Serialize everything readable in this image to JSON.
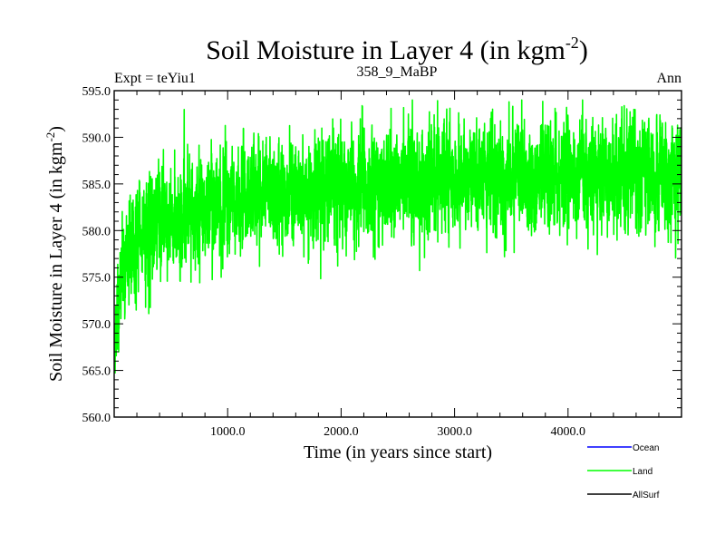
{
  "chart_data": {
    "type": "line",
    "title_main": "Soil Moisture in Layer 4 (in kgm",
    "title_sup": "-2",
    "title_close": ")",
    "subtitle_left": "Expt = teYiu1",
    "subtitle_center": "358_9_MaBP",
    "subtitle_right": "Ann",
    "xlabel": "Time (in years since start)",
    "ylabel_main": "Soil Moisture in Layer 4 (in kgm",
    "ylabel_sup": "-2",
    "ylabel_close": ")",
    "xlim": [
      0,
      5000
    ],
    "ylim": [
      560,
      595
    ],
    "xticks": [
      1000,
      2000,
      3000,
      4000
    ],
    "xtick_labels": [
      "1000.0",
      "2000.0",
      "3000.0",
      "4000.0"
    ],
    "yticks": [
      560,
      565,
      570,
      575,
      580,
      585,
      590,
      595
    ],
    "ytick_labels": [
      "560.0",
      "565.0",
      "570.0",
      "575.0",
      "580.0",
      "585.0",
      "590.0",
      "595.0"
    ],
    "legend": [
      {
        "name": "Ocean",
        "color": "#0000ff"
      },
      {
        "name": "Land",
        "color": "#00ff00"
      },
      {
        "name": "AllSurf",
        "color": "#000000"
      }
    ],
    "series": [
      {
        "name": "Land",
        "color": "#00ff00",
        "n_points": 5000,
        "trend_x": [
          0,
          50,
          200,
          500,
          1000,
          1500,
          2000,
          2500,
          3000,
          3500,
          4000,
          4500,
          5000
        ],
        "trend_y": [
          567,
          575,
          579,
          581.5,
          583,
          584,
          584.8,
          585.3,
          585.6,
          585.9,
          586.1,
          586.3,
          586.5
        ],
        "noise_amplitude": 2.8,
        "extremes": [
          {
            "x": 2,
            "y": 565
          },
          {
            "x": 2440,
            "y": 593.1
          },
          {
            "x": 3480,
            "y": 593.8
          },
          {
            "x": 1970,
            "y": 576.2
          },
          {
            "x": 3440,
            "y": 577.2
          },
          {
            "x": 4810,
            "y": 592.4
          }
        ]
      }
    ]
  }
}
